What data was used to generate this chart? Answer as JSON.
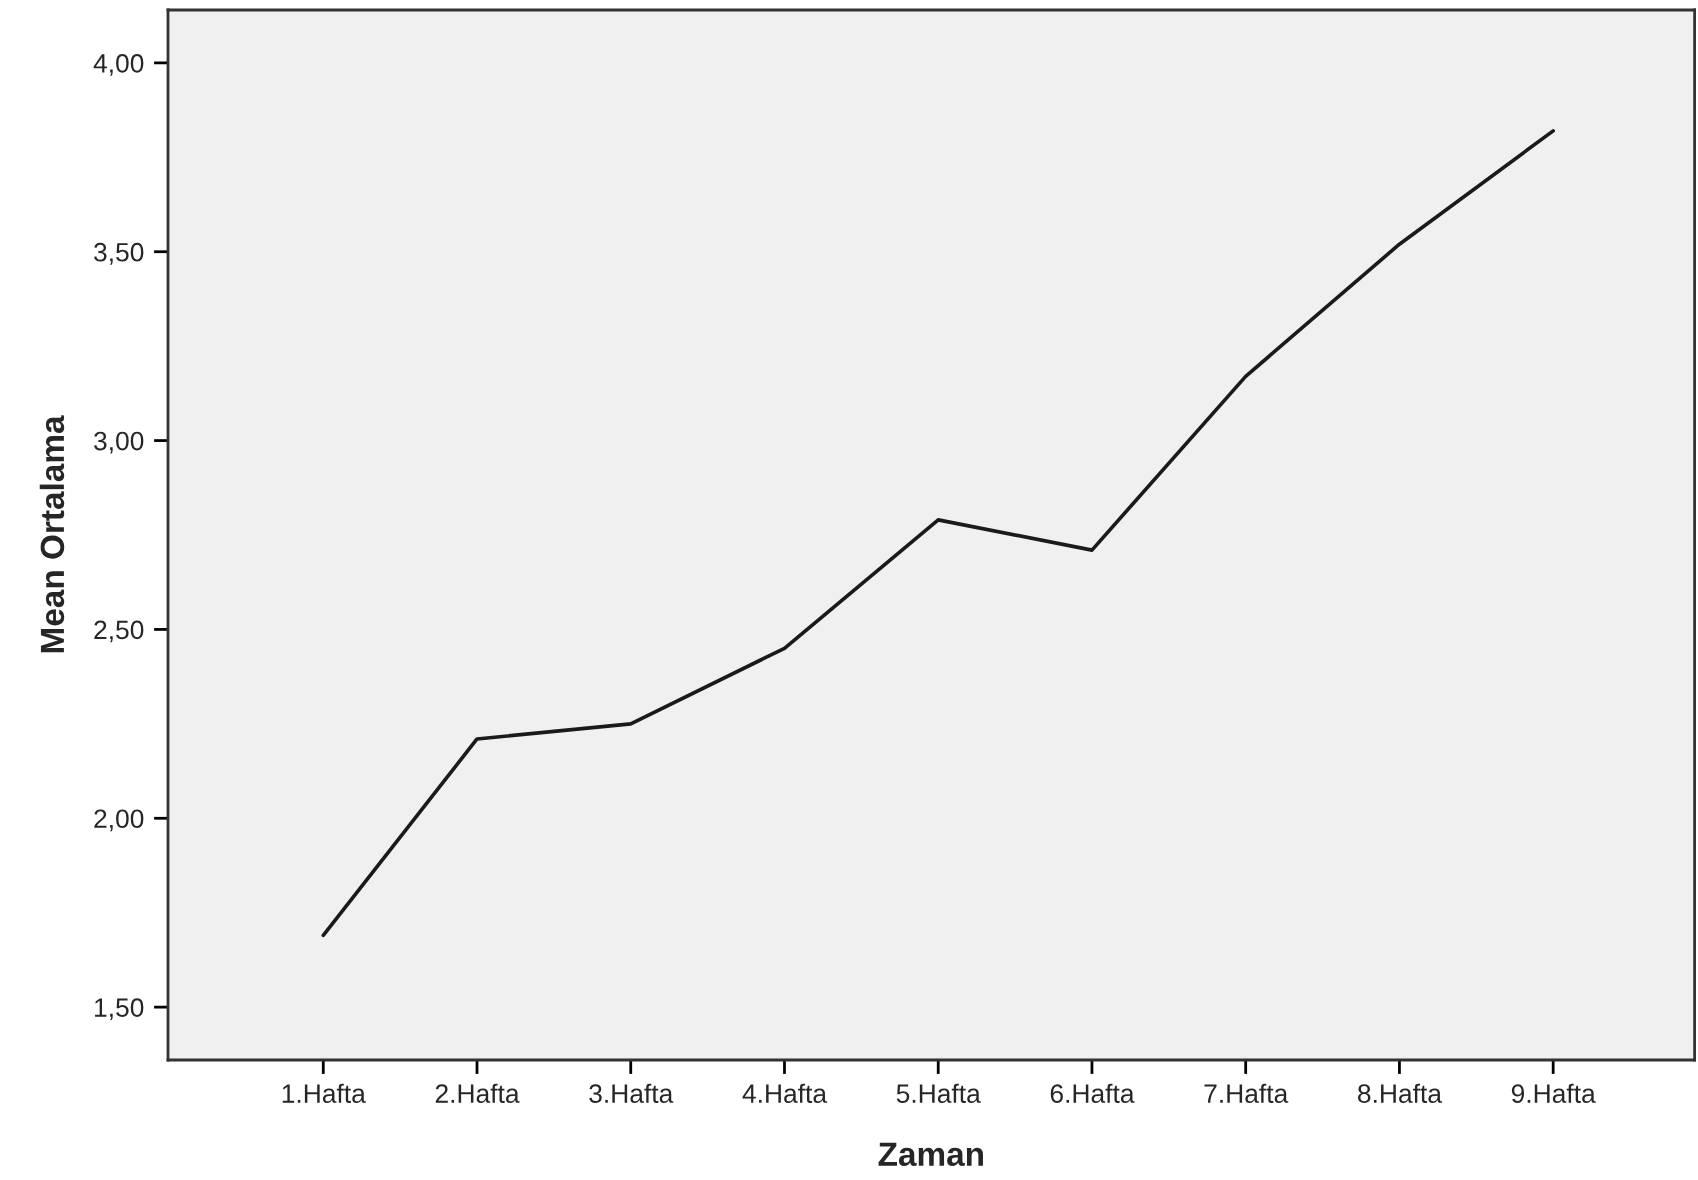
{
  "chart_data": {
    "type": "line",
    "xlabel": "Zaman",
    "ylabel": "Mean Ortalama",
    "categories": [
      "1.Hafta",
      "2.Hafta",
      "3.Hafta",
      "4.Hafta",
      "5.Hafta",
      "6.Hafta",
      "7.Hafta",
      "8.Hafta",
      "9.Hafta"
    ],
    "series": [
      {
        "color": "#1a1a1a",
        "values": [
          1.69,
          2.21,
          2.25,
          2.45,
          2.79,
          2.71,
          3.17,
          3.52,
          3.82
        ]
      }
    ],
    "ylim": [
      1.36,
      4.14
    ],
    "yticks": [
      {
        "value": 1.5,
        "label": "1,50"
      },
      {
        "value": 2.0,
        "label": "2,00"
      },
      {
        "value": 2.5,
        "label": "2,50"
      },
      {
        "value": 3.0,
        "label": "3,00"
      },
      {
        "value": 3.5,
        "label": "3,50"
      },
      {
        "value": 4.0,
        "label": "4,00"
      }
    ],
    "grid": false,
    "marker": "none",
    "line_style": "solid"
  }
}
